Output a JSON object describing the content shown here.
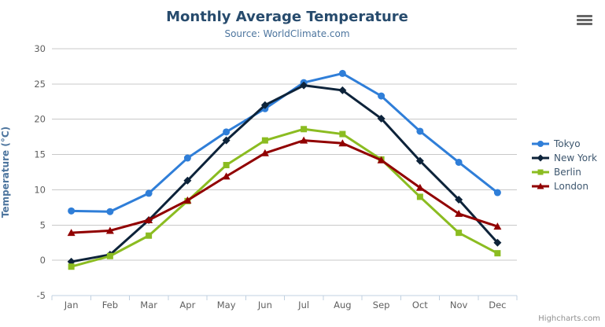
{
  "chart": {
    "title": "Monthly Average Temperature",
    "subtitle": "Source: WorldClimate.com",
    "credits": "Highcharts.com",
    "menu_icon": "hamburger-icon"
  },
  "chart_data": {
    "type": "line",
    "title": "Monthly Average Temperature",
    "subtitle": "Source: WorldClimate.com",
    "categories": [
      "Jan",
      "Feb",
      "Mar",
      "Apr",
      "May",
      "Jun",
      "Jul",
      "Aug",
      "Sep",
      "Oct",
      "Nov",
      "Dec"
    ],
    "xlabel": "",
    "ylabel": "Temperature (°C)",
    "ylim": [
      -5,
      30
    ],
    "ytick_step": 5,
    "grid": true,
    "legend_position": "right",
    "series": [
      {
        "name": "Tokyo",
        "color": "#2f7ed8",
        "marker": "circle",
        "values": [
          7.0,
          6.9,
          9.5,
          14.5,
          18.2,
          21.5,
          25.2,
          26.5,
          23.3,
          18.3,
          13.9,
          9.6
        ]
      },
      {
        "name": "New York",
        "color": "#0d233a",
        "marker": "diamond",
        "values": [
          -0.2,
          0.8,
          5.7,
          11.3,
          17.0,
          22.0,
          24.8,
          24.1,
          20.1,
          14.1,
          8.6,
          2.5
        ]
      },
      {
        "name": "Berlin",
        "color": "#8bbc21",
        "marker": "square",
        "values": [
          -0.9,
          0.6,
          3.5,
          8.4,
          13.5,
          17.0,
          18.6,
          17.9,
          14.3,
          9.0,
          3.9,
          1.0
        ]
      },
      {
        "name": "London",
        "color": "#910000",
        "marker": "triangle",
        "values": [
          3.9,
          4.2,
          5.7,
          8.5,
          11.9,
          15.2,
          17.0,
          16.6,
          14.2,
          10.3,
          6.6,
          4.8
        ]
      }
    ],
    "style": {
      "grid_color": "#c8c8c8",
      "axis_color": "#c0d0e0",
      "tick_label_color": "#606060",
      "title_color": "#274b6d",
      "subtitle_color": "#4d759e",
      "legend_text_color": "#3e576f",
      "credits_color": "#909090"
    }
  }
}
